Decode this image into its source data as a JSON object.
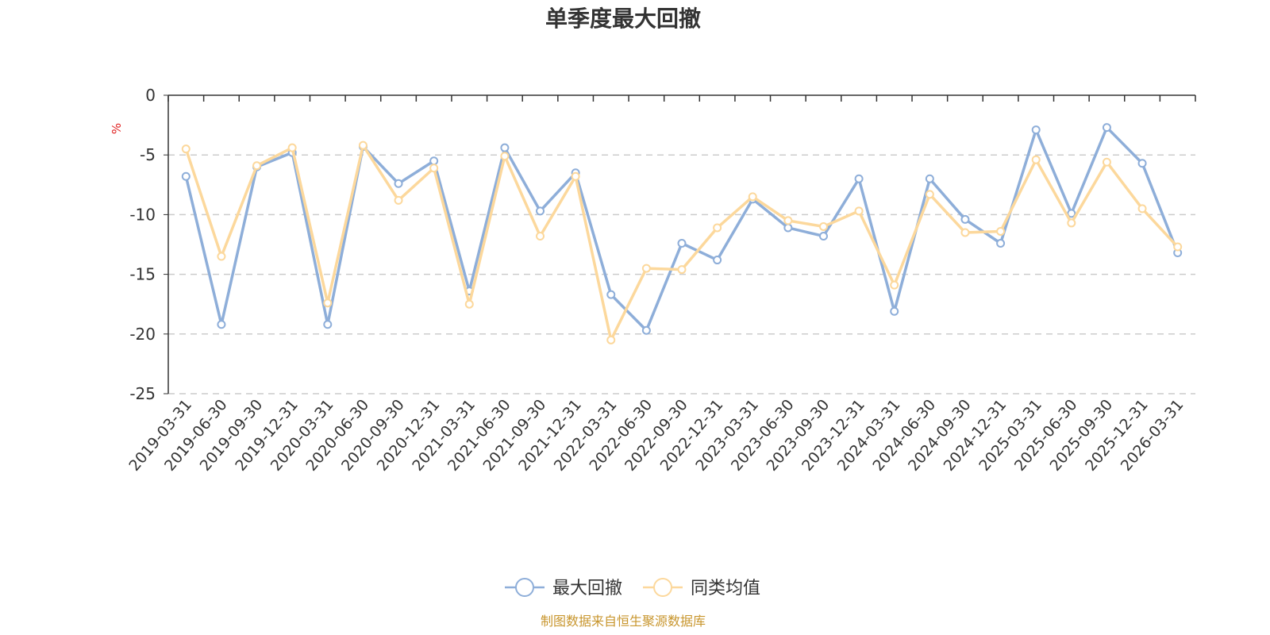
{
  "chart_data": {
    "type": "line",
    "title": "单季度最大回撤",
    "ylabel": "%",
    "ylim": [
      -25,
      0
    ],
    "yticks": [
      0,
      -5,
      -10,
      -15,
      -20,
      -25
    ],
    "grid": true,
    "legend_position": "bottom-center",
    "categories": [
      "2019-03-31",
      "2019-06-30",
      "2019-09-30",
      "2019-12-31",
      "2020-03-31",
      "2020-06-30",
      "2020-09-30",
      "2020-12-31",
      "2021-03-31",
      "2021-06-30",
      "2021-09-30",
      "2021-12-31",
      "2022-03-31",
      "2022-06-30",
      "2022-09-30",
      "2022-12-31",
      "2023-03-31",
      "2023-06-30",
      "2023-09-30",
      "2023-12-31",
      "2024-03-31",
      "2024-06-30",
      "2024-09-30",
      "2024-12-31",
      "2025-03-31",
      "2025-06-30",
      "2025-09-30",
      "2025-12-31",
      "2026-03-31"
    ],
    "series": [
      {
        "name": "最大回撤",
        "color": "#8eaed9",
        "values": [
          -6.8,
          -19.2,
          -6.0,
          -4.8,
          -19.2,
          -4.3,
          -7.4,
          -5.5,
          -16.4,
          -4.4,
          -9.7,
          -6.5,
          -16.7,
          -19.7,
          -12.4,
          -13.8,
          -8.7,
          -11.1,
          -11.8,
          -7.0,
          -18.1,
          -7.0,
          -10.4,
          -12.4,
          -2.9,
          -9.9,
          -2.7,
          -5.7,
          -13.2
        ]
      },
      {
        "name": "同类均值",
        "color": "#fcd89c",
        "values": [
          -4.5,
          -13.5,
          -5.9,
          -4.4,
          -17.4,
          -4.2,
          -8.8,
          -6.1,
          -17.5,
          -5.1,
          -11.8,
          -6.8,
          -20.5,
          -14.5,
          -14.6,
          -11.1,
          -8.5,
          -10.5,
          -11.0,
          -9.7,
          -15.9,
          -8.3,
          -11.5,
          -11.4,
          -5.4,
          -10.7,
          -5.6,
          -9.5,
          -12.7
        ]
      }
    ],
    "source": "制图数据来自恒生聚源数据库"
  }
}
